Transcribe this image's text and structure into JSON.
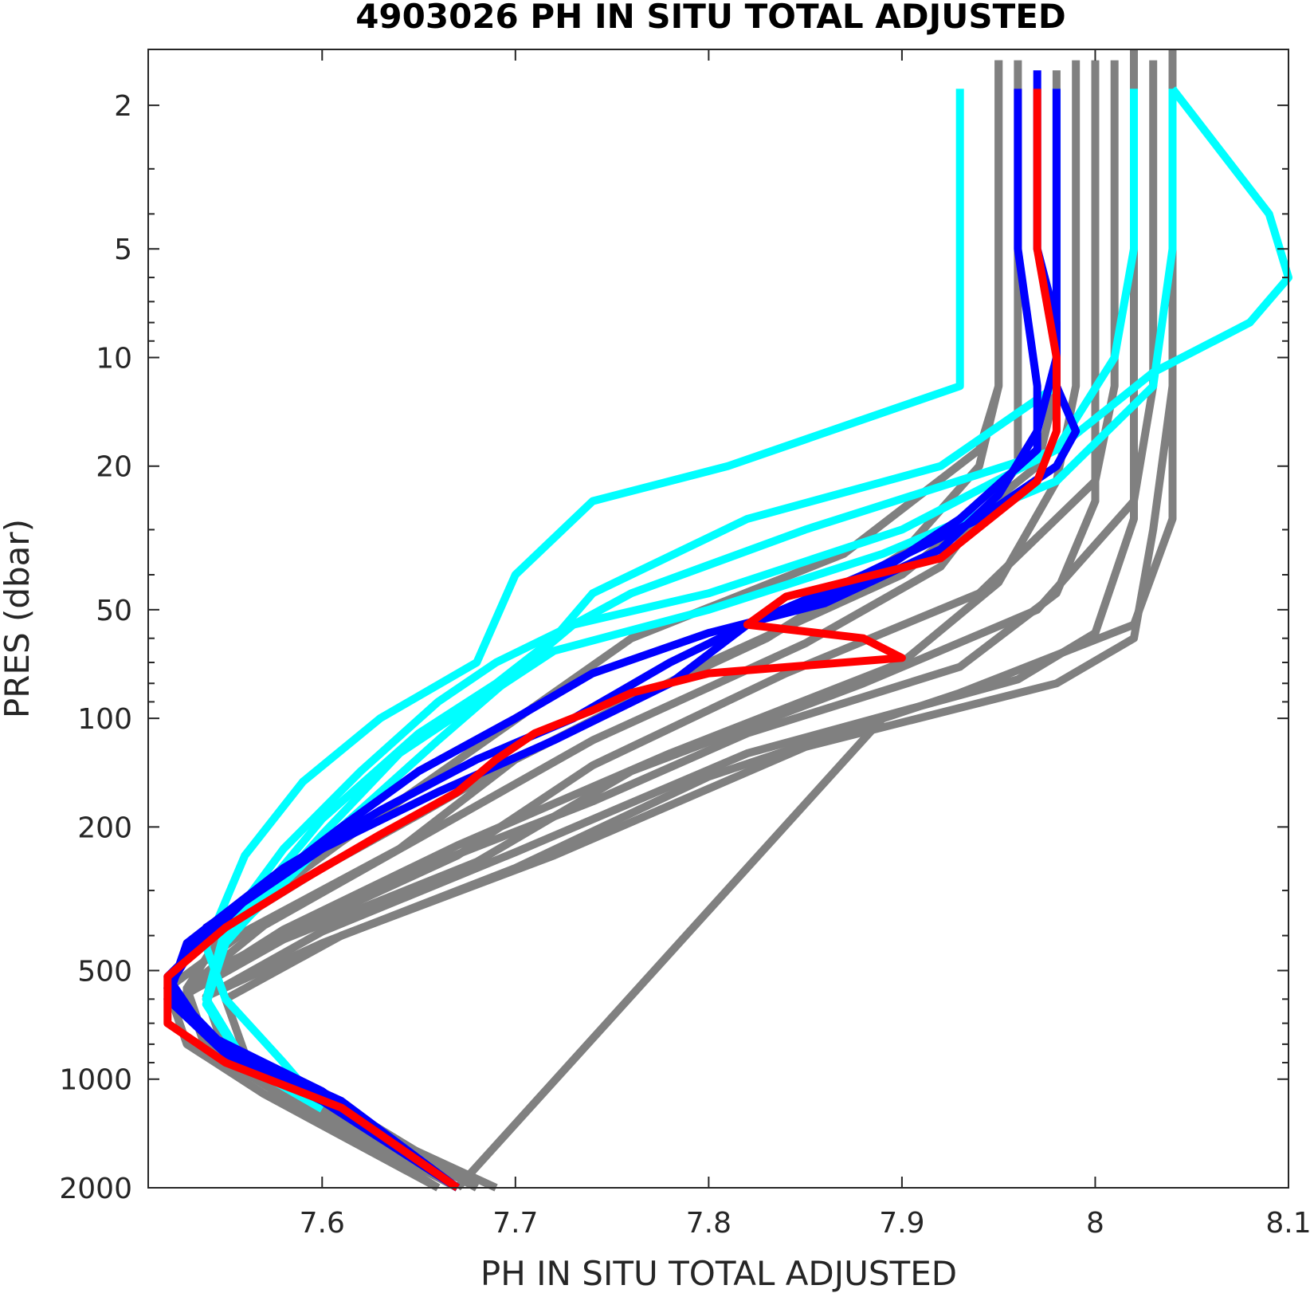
{
  "chart_data": {
    "type": "line",
    "title": "4903026  PH IN SITU TOTAL ADJUSTED",
    "xlabel": "PH IN SITU TOTAL ADJUSTED",
    "ylabel": "PRES (dbar)",
    "xlim": [
      7.51,
      8.1
    ],
    "ylim": [
      1.4,
      2000
    ],
    "y_scale": "log",
    "y_reversed": true,
    "grid": false,
    "x_ticks": [
      7.6,
      7.7,
      7.8,
      7.9,
      8,
      8.1
    ],
    "x_tick_labels": [
      "7.6",
      "7.7",
      "7.8",
      "7.9",
      "8",
      "8.1"
    ],
    "y_ticks": [
      2,
      5,
      10,
      20,
      50,
      100,
      200,
      500,
      1000,
      2000
    ],
    "y_tick_labels": [
      "2",
      "5",
      "10",
      "20",
      "50",
      "100",
      "200",
      "500",
      "1000",
      "2000"
    ],
    "colors": {
      "history": "#808080",
      "recent": "#00ffff",
      "previous": "#0000ff",
      "latest": "#ff0000"
    },
    "series": [
      {
        "group": "history",
        "x": [
          7.95,
          7.95,
          7.95,
          7.94,
          7.87,
          7.76,
          7.68,
          7.61,
          7.55,
          7.53,
          7.54,
          7.58,
          7.66
        ],
        "y": [
          1.5,
          5,
          12,
          18,
          35,
          60,
          120,
          220,
          380,
          560,
          800,
          1100,
          2000
        ]
      },
      {
        "group": "history",
        "x": [
          7.98,
          7.98,
          7.98,
          7.97,
          7.9,
          7.8,
          7.7,
          7.64,
          7.56,
          7.52,
          7.53,
          7.57,
          7.66
        ],
        "y": [
          1.6,
          5,
          12,
          20,
          40,
          70,
          130,
          230,
          390,
          560,
          800,
          1100,
          2000
        ]
      },
      {
        "group": "history",
        "x": [
          8.01,
          8.01,
          8.01,
          8.0,
          7.94,
          7.84,
          7.74,
          7.67,
          7.58,
          7.53,
          7.54,
          7.58,
          7.67
        ],
        "y": [
          1.5,
          5,
          12,
          22,
          45,
          75,
          135,
          240,
          400,
          570,
          820,
          1120,
          2000
        ]
      },
      {
        "group": "history",
        "x": [
          8.03,
          8.03,
          8.03,
          8.02,
          7.97,
          7.88,
          7.76,
          7.68,
          7.58,
          7.53,
          7.54,
          7.59,
          7.67
        ],
        "y": [
          1.5,
          5,
          12,
          25,
          50,
          80,
          140,
          250,
          410,
          580,
          830,
          1150,
          2000
        ]
      },
      {
        "group": "history",
        "x": [
          8.04,
          8.04,
          8.04,
          8.04,
          8.02,
          7.93,
          7.8,
          7.7,
          7.6,
          7.54,
          7.55,
          7.6,
          7.68
        ],
        "y": [
          1.4,
          5,
          12,
          28,
          55,
          85,
          145,
          260,
          420,
          590,
          840,
          1160,
          2000
        ]
      },
      {
        "group": "history",
        "x": [
          8.04,
          8.04,
          8.04,
          8.03,
          8.02,
          7.98,
          7.85,
          7.72,
          7.61,
          7.55,
          7.56,
          7.6,
          7.69
        ],
        "y": [
          1.4,
          5,
          12,
          30,
          60,
          80,
          120,
          240,
          400,
          600,
          850,
          1200,
          2000
        ]
      },
      {
        "group": "history",
        "x": [
          8.02,
          8.02,
          8.02,
          8.02,
          8.0,
          7.96,
          7.82,
          7.7,
          7.6,
          7.54,
          7.55,
          7.6,
          7.68
        ],
        "y": [
          1.4,
          5,
          12,
          28,
          58,
          78,
          125,
          235,
          390,
          590,
          850,
          1180,
          2000
        ]
      },
      {
        "group": "history",
        "x": [
          7.99,
          7.99,
          7.99,
          7.98,
          7.95,
          7.9,
          7.78,
          7.67,
          7.58,
          7.53,
          7.54,
          7.59,
          7.67
        ],
        "y": [
          1.5,
          5,
          12,
          22,
          42,
          70,
          125,
          225,
          385,
          570,
          820,
          1130,
          2000
        ]
      },
      {
        "group": "history",
        "x": [
          7.96,
          7.96,
          7.96,
          7.96,
          7.92,
          7.85,
          7.74,
          7.65,
          7.57,
          7.53,
          7.54,
          7.58,
          7.66
        ],
        "y": [
          1.5,
          5,
          12,
          20,
          38,
          62,
          115,
          215,
          375,
          560,
          810,
          1100,
          2000
        ]
      },
      {
        "group": "history",
        "x": [
          8.0,
          8.0,
          8.0,
          8.0,
          7.98,
          7.93,
          7.82,
          7.74,
          7.66,
          7.6,
          7.55,
          7.54,
          7.55,
          7.6,
          7.68
        ],
        "y": [
          1.5,
          5,
          12,
          25,
          45,
          72,
          110,
          170,
          250,
          350,
          480,
          600,
          800,
          1100,
          2000
        ]
      },
      {
        "group": "history",
        "x": [
          7.95,
          7.95,
          7.95,
          7.94,
          7.9,
          7.83,
          7.75,
          7.7,
          7.65,
          7.6,
          7.55,
          7.54,
          7.55,
          7.6,
          7.68
        ],
        "y": [
          1.5,
          5,
          12,
          20,
          35,
          60,
          95,
          130,
          185,
          260,
          380,
          600,
          800,
          1100,
          2000
        ]
      },
      {
        "group": "history",
        "x": [
          7.67,
          7.89
        ],
        "y": [
          2000,
          100
        ]
      },
      {
        "group": "recent",
        "x": [
          7.93,
          7.93,
          7.93,
          7.81,
          7.74,
          7.7,
          7.68,
          7.63,
          7.59,
          7.56,
          7.54,
          7.55,
          7.58,
          7.6
        ],
        "y": [
          1.8,
          5,
          12,
          20,
          25,
          40,
          70,
          100,
          150,
          240,
          430,
          600,
          900,
          1200
        ]
      },
      {
        "group": "recent",
        "x": [
          7.98,
          7.98,
          7.98,
          7.92,
          7.82,
          7.74,
          7.72,
          7.69,
          7.65,
          7.6,
          7.55,
          7.54,
          7.56,
          7.6
        ],
        "y": [
          1.8,
          5,
          12,
          20,
          28,
          45,
          60,
          80,
          110,
          190,
          400,
          600,
          900,
          1200
        ]
      },
      {
        "group": "recent",
        "x": [
          8.02,
          8.02,
          8.01,
          7.98,
          7.85,
          7.76,
          7.73,
          7.7,
          7.66,
          7.61,
          7.55,
          7.54,
          7.56,
          7.6
        ],
        "y": [
          1.8,
          5,
          10,
          18,
          30,
          45,
          55,
          75,
          115,
          200,
          410,
          620,
          900,
          1200
        ]
      },
      {
        "group": "recent",
        "x": [
          8.04,
          8.04,
          8.03,
          7.98,
          7.89,
          7.8,
          7.72,
          7.68,
          7.64,
          7.6,
          7.55,
          7.54,
          7.56,
          7.6
        ],
        "y": [
          1.8,
          5,
          12,
          22,
          35,
          50,
          65,
          90,
          125,
          210,
          420,
          620,
          910,
          1210
        ]
      },
      {
        "group": "recent",
        "x": [
          8.04,
          8.09,
          8.1,
          8.08,
          8.03,
          7.98,
          7.9,
          7.8,
          7.73,
          7.69,
          7.66,
          7.62,
          7.58,
          7.55,
          7.54,
          7.56,
          7.6
        ],
        "y": [
          1.8,
          4,
          6,
          8,
          11,
          18,
          30,
          45,
          55,
          70,
          90,
          140,
          230,
          380,
          600,
          900,
          1200
        ]
      },
      {
        "group": "previous",
        "x": [
          7.96,
          7.96,
          7.97,
          7.97,
          7.93,
          7.88,
          7.82,
          7.78,
          7.73,
          7.68,
          7.63,
          7.58,
          7.53,
          7.52,
          7.55,
          7.6,
          7.67
        ],
        "y": [
          1.8,
          5,
          12,
          18,
          28,
          42,
          55,
          70,
          100,
          130,
          180,
          260,
          420,
          600,
          850,
          1150,
          2000
        ]
      },
      {
        "group": "previous",
        "x": [
          7.97,
          7.97,
          7.98,
          7.98,
          7.99,
          7.98,
          7.94,
          7.88,
          7.82,
          7.78,
          7.72,
          7.66,
          7.6,
          7.54,
          7.52,
          7.55,
          7.61,
          7.67
        ],
        "y": [
          1.6,
          5,
          8,
          12,
          16,
          20,
          28,
          40,
          55,
          80,
          115,
          160,
          230,
          380,
          560,
          820,
          1150,
          2000
        ]
      },
      {
        "group": "previous",
        "x": [
          7.98,
          7.98,
          7.98,
          7.97,
          7.95,
          7.92,
          7.86,
          7.8,
          7.74,
          7.7,
          7.65,
          7.61,
          7.56,
          7.52,
          7.54,
          7.6,
          7.67
        ],
        "y": [
          1.8,
          5,
          10,
          16,
          24,
          34,
          48,
          58,
          75,
          100,
          140,
          200,
          320,
          520,
          750,
          1080,
          2000
        ]
      },
      {
        "group": "latest",
        "x": [
          7.97,
          7.97,
          7.98,
          7.98,
          7.97,
          7.92,
          7.84,
          7.82,
          7.88,
          7.9,
          7.8,
          7.76,
          7.74,
          7.71,
          7.69,
          7.67,
          7.63,
          7.59,
          7.55,
          7.52,
          7.52,
          7.55,
          7.61,
          7.67
        ],
        "y": [
          1.8,
          5,
          10,
          16,
          22,
          36,
          46,
          55,
          60,
          68,
          75,
          85,
          95,
          110,
          130,
          160,
          210,
          280,
          380,
          520,
          700,
          900,
          1200,
          2000
        ]
      }
    ]
  }
}
